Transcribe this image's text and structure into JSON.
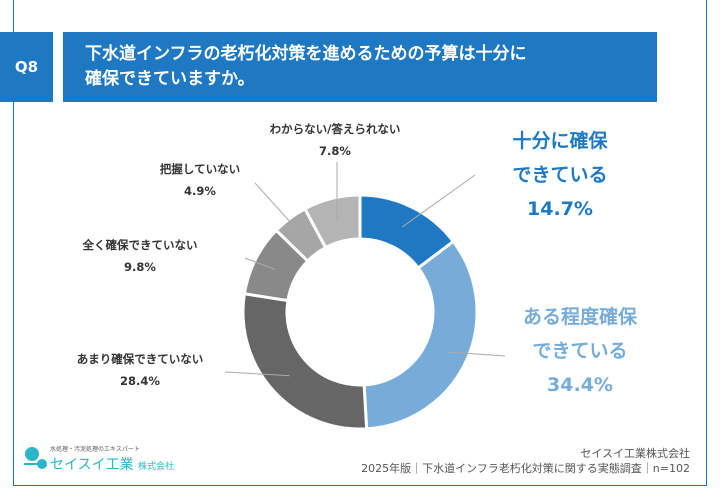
{
  "header": {
    "badge": "Q8",
    "title_line1": "下水道インフラの老朽化対策を進めるための予算は十分に",
    "title_line2": "確保できていますか。"
  },
  "chart_data": {
    "type": "pie",
    "subtype": "donut",
    "direction": "clockwise from top",
    "categories": [
      "十分に確保できている",
      "ある程度確保できている",
      "あまり確保できていない",
      "全く確保できていない",
      "把握していない",
      "わからない/答えられない"
    ],
    "values": [
      14.7,
      34.4,
      28.4,
      9.8,
      4.9,
      7.8
    ],
    "labels": [
      "14.7%",
      "34.4%",
      "28.4%",
      "9.8%",
      "4.9%",
      "7.8%"
    ],
    "colors": [
      "#1e78c2",
      "#77acd9",
      "#666666",
      "#898989",
      "#a6a6a6",
      "#b4b4b4"
    ]
  },
  "labels": {
    "l0a": "十分に確保",
    "l0b": "できている",
    "l1a": "ある程度確保",
    "l1b": "できている"
  },
  "footer": {
    "logo_tagline": "水処理・汚泥処理のエキスパート",
    "logo_name": "セイスイ工業",
    "logo_suffix": "株式会社",
    "company": "セイスイ工業株式会社",
    "survey": "2025年版｜下水道インフラ老朽化対策に関する実態調査｜n=102"
  }
}
